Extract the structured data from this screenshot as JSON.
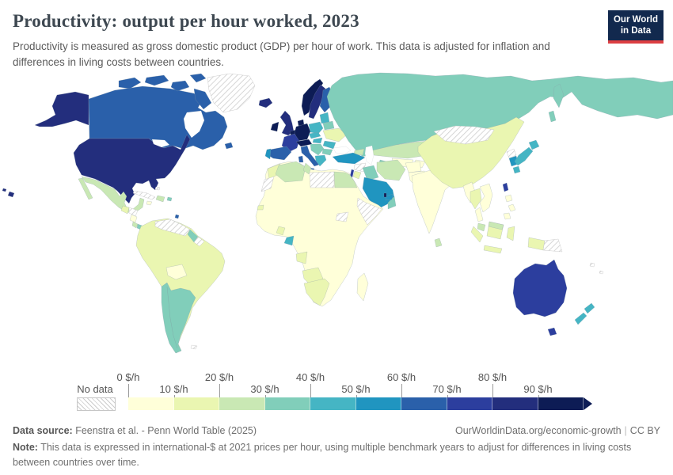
{
  "header": {
    "title": "Productivity: output per hour worked, 2023",
    "subtitle": "Productivity is measured as gross domestic product (GDP) per hour of work. This data is adjusted for inflation and differences in living costs between countries.",
    "logo": {
      "line1": "Our World",
      "line2": "in Data",
      "bg_color": "#12294e",
      "accent_color": "#dc3e42"
    }
  },
  "legend": {
    "no_data_label": "No data",
    "tick_labels": [
      "0 $/h",
      "10 $/h",
      "20 $/h",
      "30 $/h",
      "40 $/h",
      "50 $/h",
      "60 $/h",
      "70 $/h",
      "80 $/h",
      "90 $/h"
    ],
    "colors": [
      "#ffffd9",
      "#eaf6b1",
      "#c9e8b4",
      "#81ceba",
      "#45b5c4",
      "#2095c0",
      "#2a60aa",
      "#2c3e9e",
      "#232e7d",
      "#0d1c55"
    ]
  },
  "footer": {
    "datasource_label": "Data source:",
    "datasource_value": "Feenstra et al. - Penn World Table (2025)",
    "link": "OurWorldinData.org/economic-growth",
    "license": "CC BY",
    "note_label": "Note:",
    "note_value": "This data is expressed in international-$ at 2021 prices per hour, using multiple benchmark years to adjust for differences in living costs between countries over time."
  },
  "chart_data": {
    "type": "choropleth_map",
    "title": "Productivity: output per hour worked",
    "year": 2023,
    "unit": "$/h",
    "legend_position": "bottom",
    "bins": [
      "0-10",
      "10-20",
      "20-30",
      "30-40",
      "40-50",
      "50-60",
      "60-70",
      "70-80",
      "80-90",
      "90+"
    ],
    "no_data": -1,
    "regions": {
      "usa": 8,
      "hawaii": 8,
      "canada": 6,
      "arctic-islands": 6,
      "newfoundland": 6,
      "greenland": -1,
      "mexico": 2,
      "baja": 2,
      "guatemala": 1,
      "honduras": -1,
      "nicaragua": 0,
      "costa-rica": 2,
      "panama": 3,
      "cuba": -1,
      "bahamas": -1,
      "hispaniola": 2,
      "jamaica": 0,
      "puerto-rico": 3,
      "trinidad": 6,
      "south-america-base": 1,
      "venezuela": -1,
      "guyana": 3,
      "suriname": -1,
      "bolivia": 0,
      "southern-cone": 3,
      "falklands": -1,
      "iceland": 8,
      "norway": 9,
      "sweden": 8,
      "finland": 6,
      "denmark": 9,
      "uk": 8,
      "ireland": 9,
      "benelux": 9,
      "germany": 9,
      "france": 7,
      "alpine": 9,
      "spain": 6,
      "portugal": 5,
      "italy": 6,
      "sicily": 6,
      "sardinia": 6,
      "poland": 4,
      "czechia": 4,
      "hungary": 4,
      "baltics": 4,
      "belarus": 3,
      "ukraine": 1,
      "romania": 4,
      "balkans": 3,
      "bulgaria": 3,
      "greece": 4,
      "russia": 3,
      "kamchatka": 3,
      "sakhalin": 3,
      "kazakhstan": 2,
      "uzbekistan": 0,
      "turkmenistan": 3,
      "kyrgyzstan": 0,
      "caucasus": 2,
      "turkey": 5,
      "syria": -1,
      "iraq": 3,
      "iran": 2,
      "afghanistan": 0,
      "pakistan": 0,
      "saudi-arabia": 5,
      "yemen": 0,
      "oman": 3,
      "uae": 5,
      "qatar": 9,
      "israel": 7,
      "jordan": 1,
      "india": 0,
      "india-ne": 0,
      "nepal": 0,
      "sri-lanka": 2,
      "china": 1,
      "mongolia": -1,
      "north-korea": -1,
      "south-korea": 5,
      "japan-hokkaido": 4,
      "japan-honshu": 4,
      "japan-kyushu": 4,
      "taiwan": 7,
      "myanmar": 0,
      "thailand": 1,
      "malay-strip": 0,
      "malaysia": 2,
      "indochina": 0,
      "philippines-1": 0,
      "philippines-2": 0,
      "philippines-3": 0,
      "sumatra": 1,
      "java": 1,
      "borneo": 1,
      "borneo-malaysia": 2,
      "sulawesi": 1,
      "west-papua": 1,
      "papua-new-guinea": -1,
      "australia": 7,
      "tasmania": 7,
      "new-zealand-north": 4,
      "new-zealand-south": 4,
      "fiji": -1,
      "pacific-island": -1,
      "africa-base": 0,
      "morocco": 1,
      "western-sahara": -1,
      "algeria": 2,
      "tunisia": 2,
      "libya": -1,
      "egypt": 2,
      "senegal": 1,
      "south-sudan": -1,
      "horn-of-africa": -1,
      "ghana": 1,
      "gabon": 4,
      "angola": 1,
      "namibia-botswana": 1,
      "south-africa": 1,
      "madagascar": 0
    }
  }
}
